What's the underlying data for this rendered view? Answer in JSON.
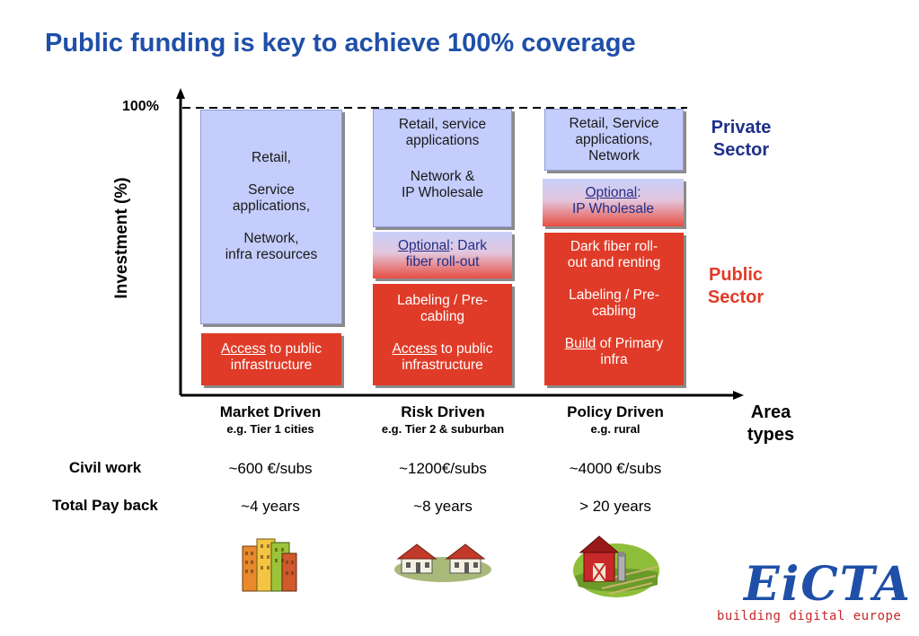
{
  "title": "Public funding is key to achieve 100% coverage",
  "axis": {
    "y_label": "Investment (%)",
    "y_top_label": "100%",
    "x_label_line1": "Area",
    "x_label_line2": "types"
  },
  "sectors": {
    "private_line1": "Private",
    "private_line2": "Sector",
    "private_color": "#1f2f8a",
    "public_line1": "Public",
    "public_line2": "Sector",
    "public_color": "#e03b28"
  },
  "columns": [
    {
      "name": "Market Driven",
      "example": "e.g. Tier 1 cities",
      "private_box": {
        "line1": "Retail,",
        "line2": "Service",
        "line3": "applications,",
        "line4": "Network,",
        "line5": "infra resources"
      },
      "public_box": {
        "link": "Access",
        "rest": " to public",
        "line2": "infrastructure"
      }
    },
    {
      "name": "Risk Driven",
      "example": "e.g. Tier 2 & suburban",
      "private_box": {
        "line1": "Retail, service",
        "line2": "applications",
        "line3": "Network &",
        "line4": "IP Wholesale"
      },
      "optional_box": {
        "link": "Optional",
        "rest": ": Dark",
        "line2": "fiber roll-out"
      },
      "public_box": {
        "line1": "Labeling / Pre-",
        "line2": "cabling",
        "link": "Access",
        "rest": " to public",
        "line4": "infrastructure"
      }
    },
    {
      "name": "Policy Driven",
      "example": "e.g. rural",
      "private_box": {
        "line1": "Retail, Service",
        "line2": "applications,",
        "line3": "Network"
      },
      "optional_box": {
        "link": "Optional",
        "rest": ":",
        "line2": "IP Wholesale"
      },
      "public_box": {
        "line1": "Dark fiber roll-",
        "line2": "out and renting",
        "line3": "Labeling / Pre-",
        "line4": "cabling",
        "link": "Build",
        "rest": " of Primary",
        "line6": "infra"
      }
    }
  ],
  "rows": [
    {
      "label": "Civil work",
      "values": [
        "~600 €/subs",
        "~1200€/subs",
        "~4000 €/subs"
      ]
    },
    {
      "label": "Total Pay back",
      "values": [
        "~4 years",
        "~8 years",
        "> 20 years"
      ]
    }
  ],
  "icons": [
    "city-buildings-icon",
    "suburban-houses-icon",
    "rural-farm-icon"
  ],
  "logo": {
    "name": "EiCTA",
    "tagline": "building digital europe"
  }
}
